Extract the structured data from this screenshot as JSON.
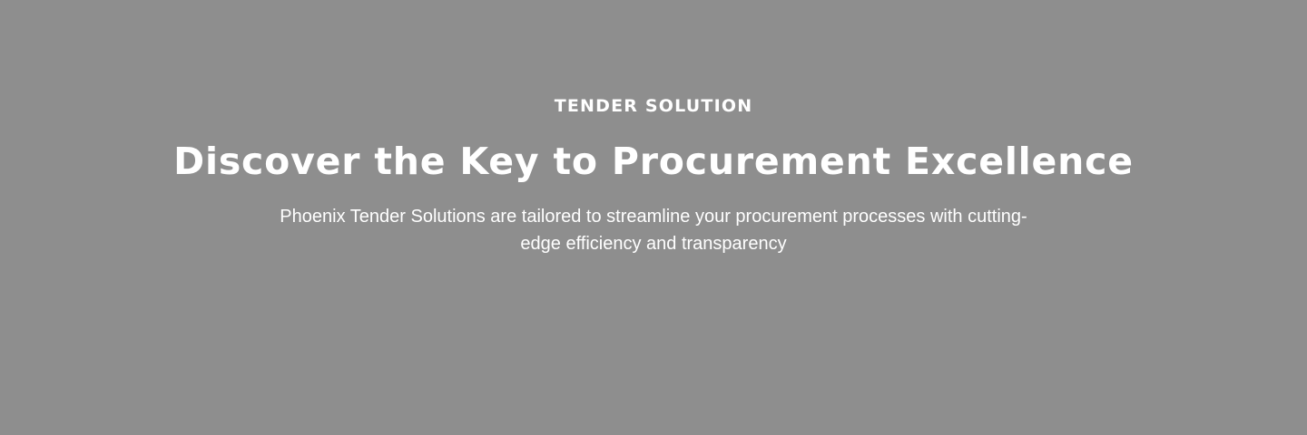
{
  "hero": {
    "eyebrow": "TENDER SOLUTION",
    "headline": "Discover the Key to Procurement Excellence",
    "subtext": "Phoenix Tender Solutions are tailored to streamline your procurement processes with cutting-edge efficiency and transparency"
  },
  "colors": {
    "background": "#8e8e8e",
    "text": "#ffffff"
  }
}
